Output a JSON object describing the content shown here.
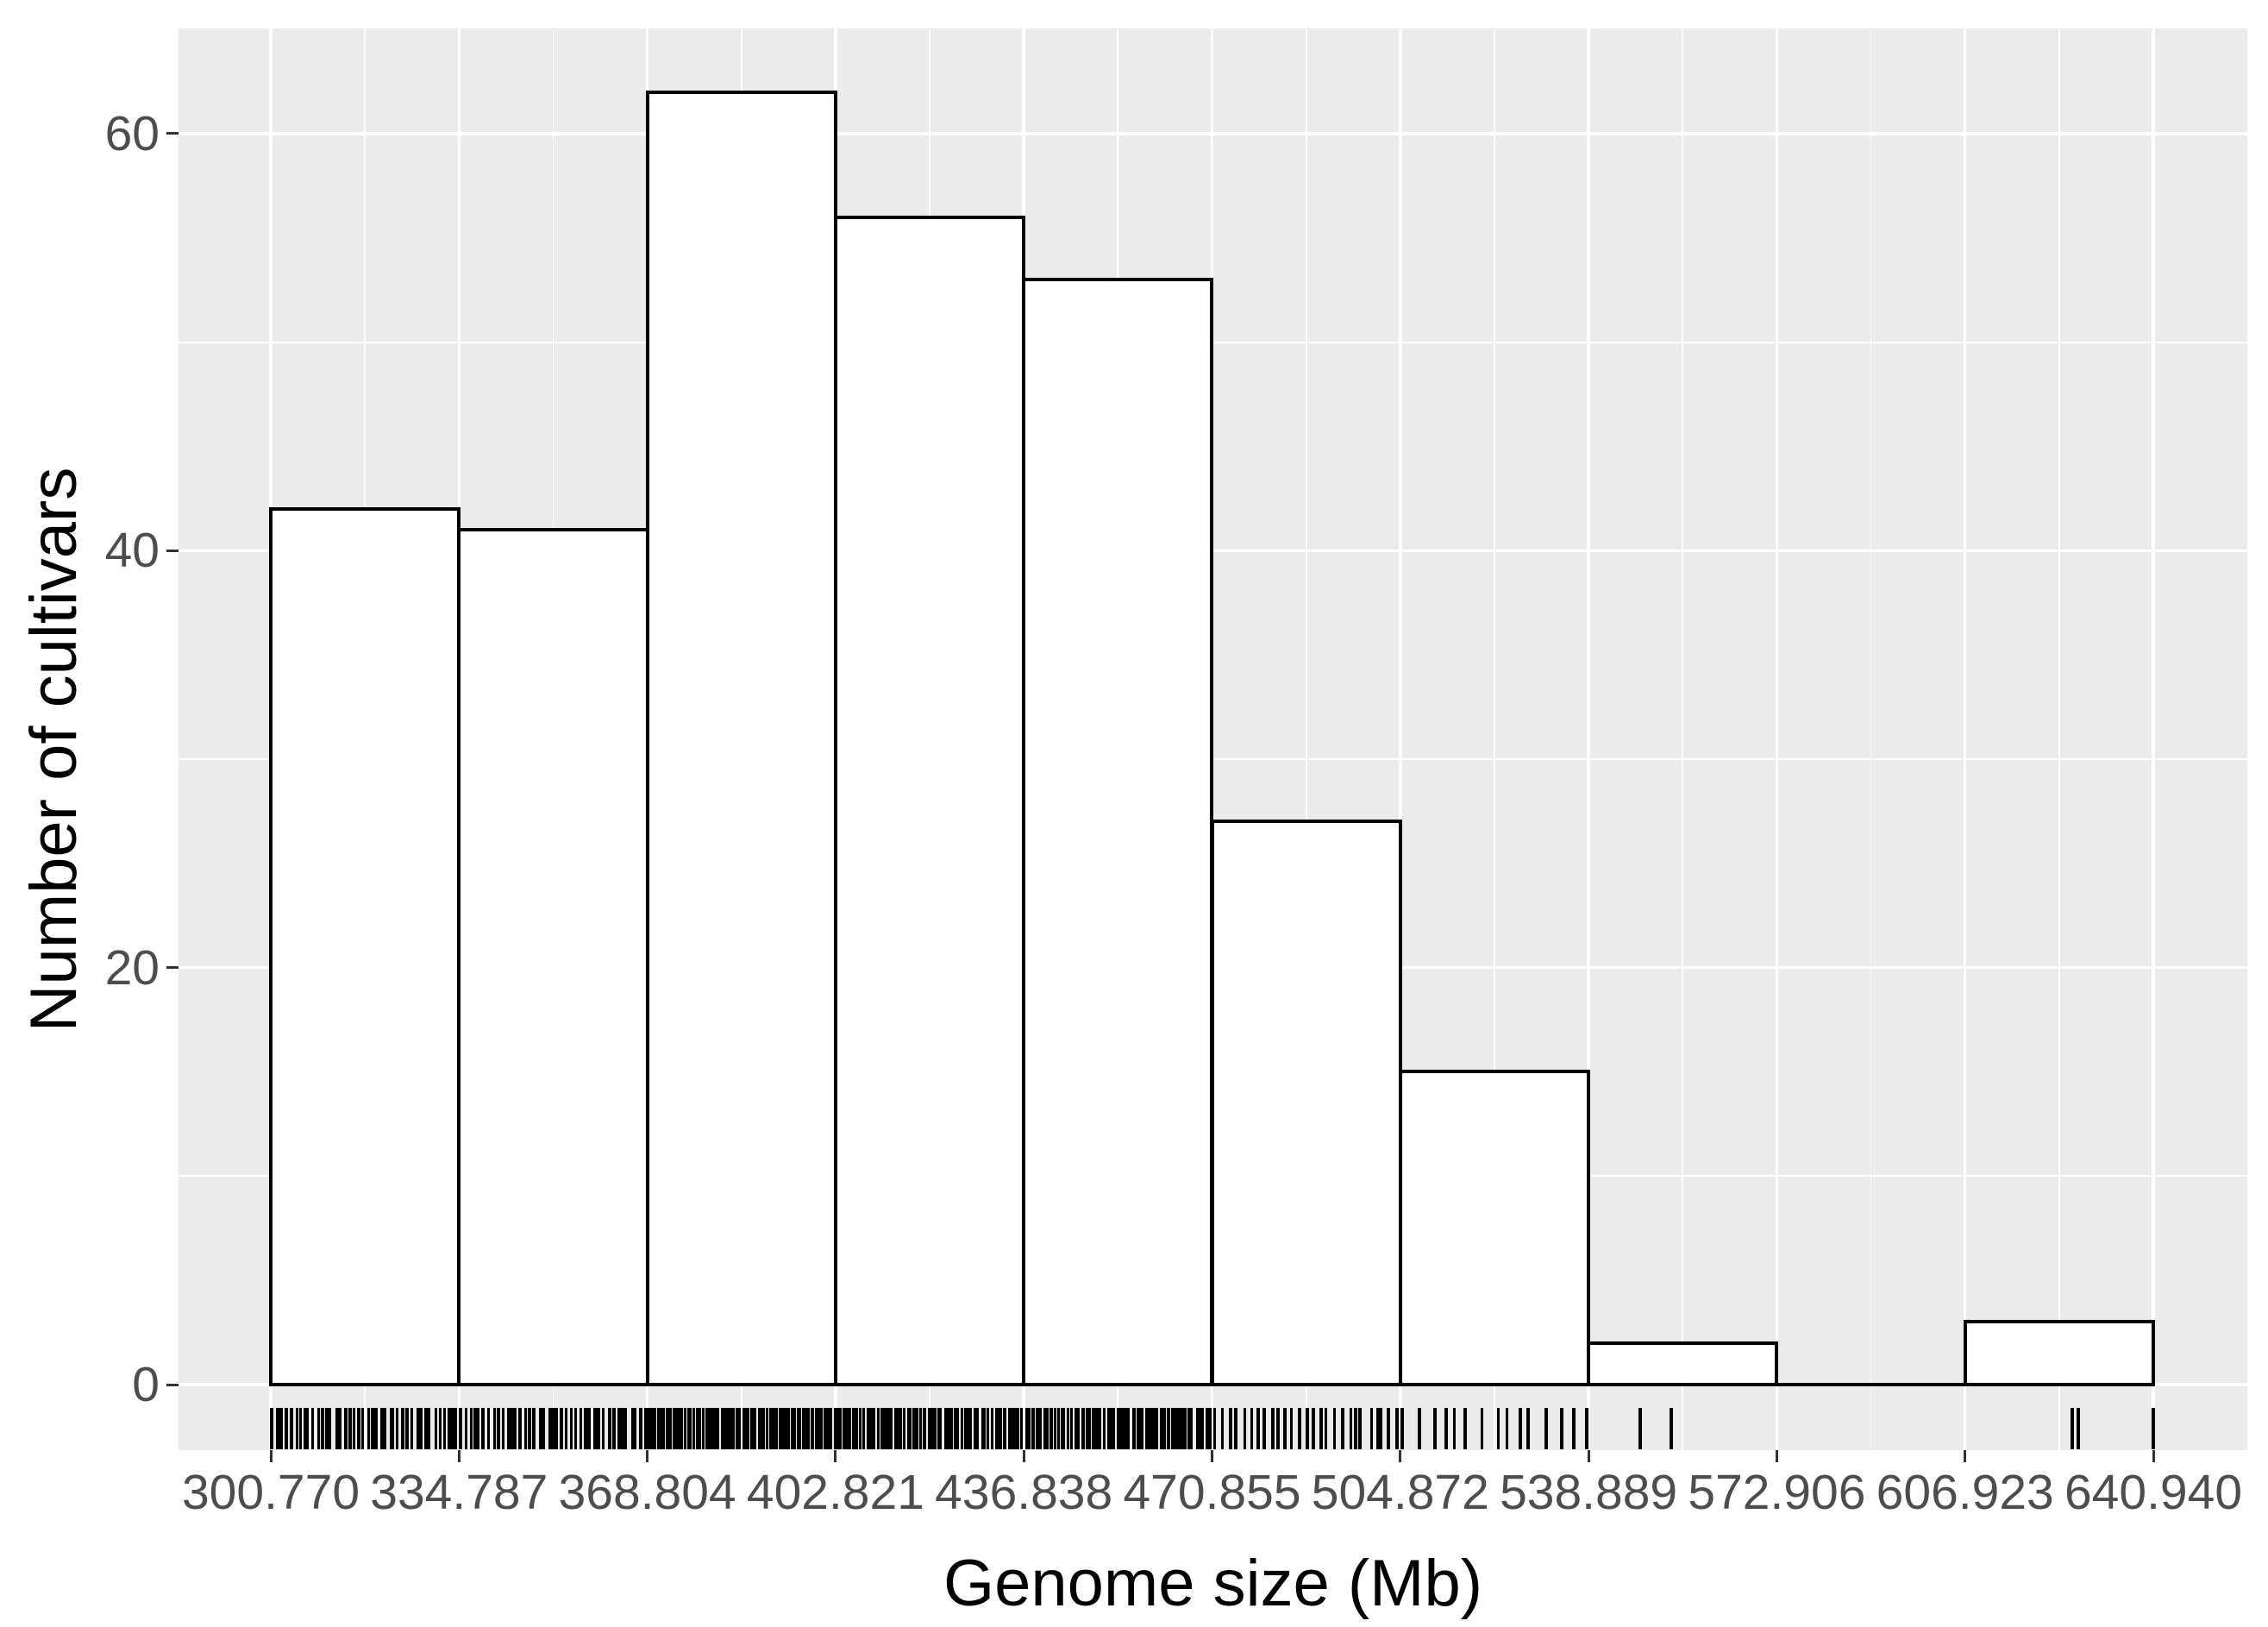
{
  "figure": {
    "background": "#FFFFFF",
    "panel_background": "#EBEBEB",
    "gridline_color": "#FFFFFF",
    "bar_fill": "#FFFFFF",
    "bar_stroke": "#000000",
    "tick_label_color": "#4D4D4D",
    "axis_title_color": "#000000",
    "tick_mark_color": "#333333",
    "rug_color": "#000000"
  },
  "chart_data": {
    "type": "bar",
    "subtype": "histogram-with-rug",
    "title": "",
    "xlabel": "Genome size (Mb)",
    "ylabel": "Number of cultivars",
    "x_tick_labels": [
      "300.770",
      "334.787",
      "368.804",
      "402.821",
      "436.838",
      "470.855",
      "504.872",
      "538.889",
      "572.906",
      "606.923",
      "640.940"
    ],
    "x_tick_values": [
      300.77,
      334.787,
      368.804,
      402.821,
      436.838,
      470.855,
      504.872,
      538.889,
      572.906,
      606.923,
      640.94
    ],
    "y_tick_labels": [
      "0",
      "20",
      "40",
      "60"
    ],
    "y_tick_values": [
      0,
      20,
      40,
      60
    ],
    "y_minor_tick_values": [
      10,
      30,
      50
    ],
    "bin_edges": [
      300.77,
      334.787,
      368.804,
      402.821,
      436.838,
      470.855,
      504.872,
      538.889,
      572.906,
      606.923,
      640.94
    ],
    "counts": [
      42,
      41,
      62,
      56,
      53,
      27,
      15,
      2,
      0,
      3
    ],
    "rug_explicit_values": {
      "bin_8": [
        548.2,
        553.8
      ],
      "bin_10": [
        626.3,
        627.4,
        640.9
      ]
    },
    "xlim": [
      283.76,
      657.95
    ],
    "ylim": [
      -3.1,
      65.1
    ],
    "grid": "major-and-minor",
    "legend": "none"
  }
}
